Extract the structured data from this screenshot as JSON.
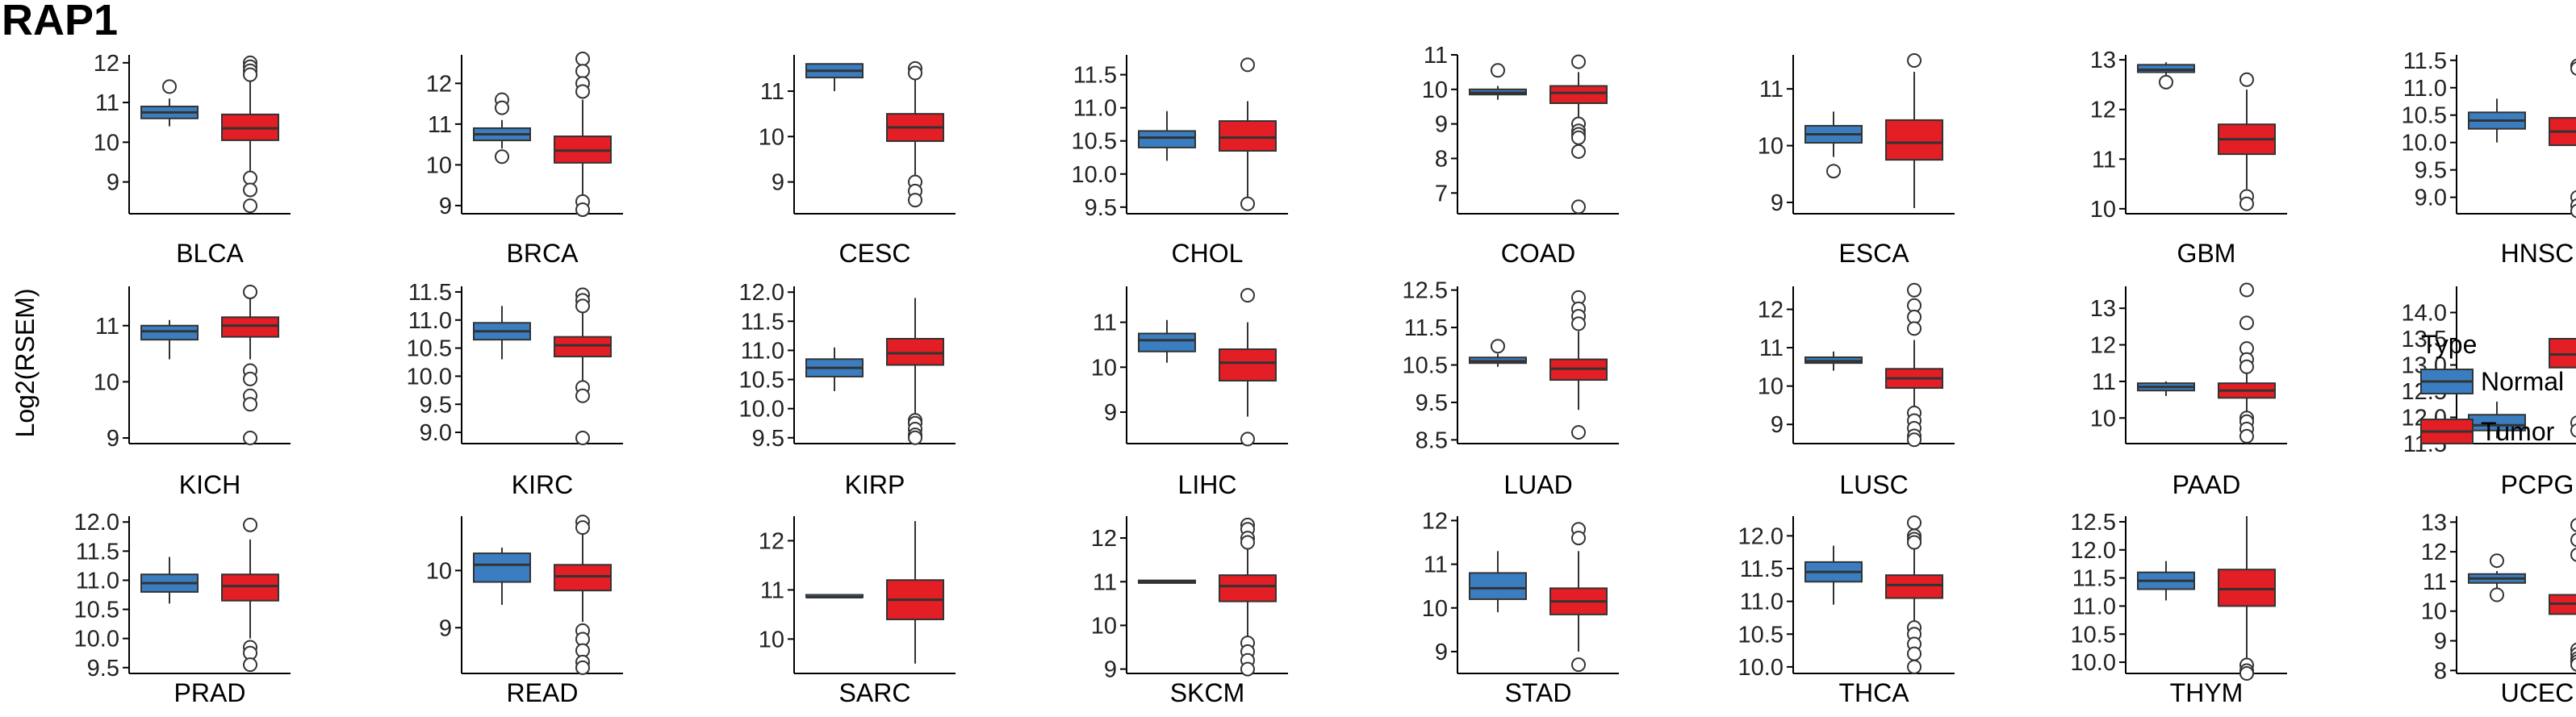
{
  "page": {
    "title": "RAP1"
  },
  "chart_data": {
    "type": "box",
    "title": "RAP1",
    "ylabel": "Log2(RSEM)",
    "legend": {
      "title": "Type",
      "entries": [
        {
          "name": "Normal",
          "color": "#3A7EC1"
        },
        {
          "name": "Tumor",
          "color": "#E31E24"
        }
      ],
      "placement": "right"
    },
    "colors": {
      "Normal": "#3A7EC1",
      "Tumor": "#E31E24"
    },
    "panels": [
      {
        "name": "BLCA",
        "yticks": [
          9,
          10,
          11,
          12
        ],
        "ylim": [
          8.2,
          12.2
        ],
        "normal": {
          "q1": 10.6,
          "median": 10.75,
          "q3": 10.9,
          "lo": 10.4,
          "hi": 11.1,
          "outliers": [
            11.4
          ]
        },
        "tumor": {
          "q1": 10.05,
          "median": 10.35,
          "q3": 10.7,
          "lo": 9.2,
          "hi": 11.6,
          "outliers": [
            12.0,
            11.9,
            11.8,
            11.7,
            9.1,
            8.8,
            8.4
          ]
        }
      },
      {
        "name": "BRCA",
        "yticks": [
          9,
          10,
          11,
          12
        ],
        "ylim": [
          8.8,
          12.7
        ],
        "normal": {
          "q1": 10.6,
          "median": 10.75,
          "q3": 10.9,
          "lo": 10.4,
          "hi": 11.1,
          "outliers": [
            11.6,
            11.4,
            10.2
          ]
        },
        "tumor": {
          "q1": 10.05,
          "median": 10.35,
          "q3": 10.7,
          "lo": 9.2,
          "hi": 11.6,
          "outliers": [
            12.6,
            12.3,
            12.0,
            11.8,
            9.1,
            8.9
          ]
        }
      },
      {
        "name": "CESC",
        "yticks": [
          9,
          10,
          11
        ],
        "ylim": [
          8.3,
          11.8
        ],
        "normal": {
          "q1": 11.3,
          "median": 11.45,
          "q3": 11.6,
          "lo": 11.0,
          "hi": 11.6,
          "outliers": []
        },
        "tumor": {
          "q1": 9.9,
          "median": 10.2,
          "q3": 10.5,
          "lo": 9.1,
          "hi": 11.3,
          "outliers": [
            11.5,
            11.4,
            9.0,
            8.8,
            8.6
          ]
        }
      },
      {
        "name": "CHOL",
        "yticks": [
          9.5,
          10.0,
          10.5,
          11.0,
          11.5
        ],
        "ylim": [
          9.4,
          11.8
        ],
        "normal": {
          "q1": 10.4,
          "median": 10.55,
          "q3": 10.65,
          "lo": 10.2,
          "hi": 10.95,
          "outliers": []
        },
        "tumor": {
          "q1": 10.35,
          "median": 10.55,
          "q3": 10.8,
          "lo": 9.6,
          "hi": 11.1,
          "outliers": [
            11.65,
            9.55
          ]
        }
      },
      {
        "name": "COAD",
        "yticks": [
          7,
          8,
          9,
          10,
          11
        ],
        "ylim": [
          6.4,
          11.0
        ],
        "normal": {
          "q1": 9.85,
          "median": 9.9,
          "q3": 10.0,
          "lo": 9.7,
          "hi": 10.1,
          "outliers": [
            10.55
          ]
        },
        "tumor": {
          "q1": 9.6,
          "median": 9.9,
          "q3": 10.1,
          "lo": 9.0,
          "hi": 10.5,
          "outliers": [
            10.8,
            9.0,
            8.8,
            8.7,
            8.6,
            8.2,
            6.6
          ]
        }
      },
      {
        "name": "ESCA",
        "yticks": [
          9,
          10,
          11
        ],
        "ylim": [
          8.8,
          11.6
        ],
        "normal": {
          "q1": 10.05,
          "median": 10.2,
          "q3": 10.35,
          "lo": 9.8,
          "hi": 10.6,
          "outliers": [
            9.55
          ]
        },
        "tumor": {
          "q1": 9.75,
          "median": 10.05,
          "q3": 10.45,
          "lo": 8.9,
          "hi": 11.3,
          "outliers": [
            11.5
          ]
        }
      },
      {
        "name": "GBM",
        "yticks": [
          10,
          11,
          12,
          13
        ],
        "ylim": [
          9.9,
          13.1
        ],
        "normal": {
          "q1": 12.75,
          "median": 12.8,
          "q3": 12.9,
          "lo": 12.6,
          "hi": 12.95,
          "outliers": [
            12.55
          ]
        },
        "tumor": {
          "q1": 11.1,
          "median": 11.4,
          "q3": 11.7,
          "lo": 10.4,
          "hi": 12.4,
          "outliers": [
            12.6,
            10.25,
            10.1
          ]
        }
      },
      {
        "name": "HNSC",
        "yticks": [
          9.0,
          9.5,
          10.0,
          10.5,
          11.0,
          11.5
        ],
        "ylim": [
          8.7,
          11.6
        ],
        "normal": {
          "q1": 10.25,
          "median": 10.4,
          "q3": 10.55,
          "lo": 10.0,
          "hi": 10.8,
          "outliers": []
        },
        "tumor": {
          "q1": 9.95,
          "median": 10.2,
          "q3": 10.45,
          "lo": 9.2,
          "hi": 11.2,
          "outliers": [
            11.4,
            11.35,
            9.0,
            8.85,
            8.75
          ]
        }
      },
      {
        "name": "KICH",
        "yticks": [
          9,
          10,
          11
        ],
        "ylim": [
          8.9,
          11.7
        ],
        "normal": {
          "q1": 10.75,
          "median": 10.9,
          "q3": 11.0,
          "lo": 10.4,
          "hi": 11.1,
          "outliers": []
        },
        "tumor": {
          "q1": 10.8,
          "median": 11.0,
          "q3": 11.15,
          "lo": 10.4,
          "hi": 11.5,
          "outliers": [
            11.6,
            10.2,
            10.05,
            9.75,
            9.6,
            9.0
          ]
        }
      },
      {
        "name": "KIRC",
        "yticks": [
          9.0,
          9.5,
          10.0,
          10.5,
          11.0,
          11.5
        ],
        "ylim": [
          8.8,
          11.6
        ],
        "normal": {
          "q1": 10.65,
          "median": 10.8,
          "q3": 10.95,
          "lo": 10.3,
          "hi": 11.25,
          "outliers": []
        },
        "tumor": {
          "q1": 10.35,
          "median": 10.55,
          "q3": 10.7,
          "lo": 9.9,
          "hi": 11.2,
          "outliers": [
            11.45,
            11.35,
            11.25,
            9.8,
            9.65,
            8.9
          ]
        }
      },
      {
        "name": "KIRP",
        "yticks": [
          9.5,
          10.0,
          10.5,
          11.0,
          11.5,
          12.0
        ],
        "ylim": [
          9.4,
          12.1
        ],
        "normal": {
          "q1": 10.55,
          "median": 10.7,
          "q3": 10.85,
          "lo": 10.3,
          "hi": 11.05,
          "outliers": []
        },
        "tumor": {
          "q1": 10.75,
          "median": 10.95,
          "q3": 11.2,
          "lo": 9.9,
          "hi": 11.9,
          "outliers": [
            9.8,
            9.75,
            9.65,
            9.55,
            9.5
          ]
        }
      },
      {
        "name": "LIHC",
        "yticks": [
          9,
          10,
          11
        ],
        "ylim": [
          8.3,
          11.8
        ],
        "normal": {
          "q1": 10.35,
          "median": 10.6,
          "q3": 10.75,
          "lo": 10.1,
          "hi": 11.05,
          "outliers": []
        },
        "tumor": {
          "q1": 9.7,
          "median": 10.1,
          "q3": 10.4,
          "lo": 8.9,
          "hi": 11.0,
          "outliers": [
            11.6,
            8.4
          ]
        }
      },
      {
        "name": "LUAD",
        "yticks": [
          8.5,
          9.5,
          10.5,
          11.5,
          12.5
        ],
        "ylim": [
          8.4,
          12.6
        ],
        "normal": {
          "q1": 10.55,
          "median": 10.6,
          "q3": 10.7,
          "lo": 10.45,
          "hi": 10.8,
          "outliers": [
            11.0
          ]
        },
        "tumor": {
          "q1": 10.1,
          "median": 10.4,
          "q3": 10.65,
          "lo": 9.3,
          "hi": 11.4,
          "outliers": [
            12.3,
            12.0,
            11.8,
            11.6,
            8.7
          ]
        }
      },
      {
        "name": "LUSC",
        "yticks": [
          9,
          10,
          11,
          12
        ],
        "ylim": [
          8.5,
          12.6
        ],
        "normal": {
          "q1": 10.6,
          "median": 10.65,
          "q3": 10.75,
          "lo": 10.4,
          "hi": 10.9,
          "outliers": []
        },
        "tumor": {
          "q1": 9.95,
          "median": 10.2,
          "q3": 10.45,
          "lo": 9.4,
          "hi": 11.2,
          "outliers": [
            12.5,
            12.1,
            11.8,
            11.5,
            9.3,
            9.1,
            8.9,
            8.7,
            8.6
          ]
        }
      },
      {
        "name": "PAAD",
        "yticks": [
          10,
          11,
          12,
          13
        ],
        "ylim": [
          9.3,
          13.6
        ],
        "normal": {
          "q1": 10.75,
          "median": 10.85,
          "q3": 10.95,
          "lo": 10.6,
          "hi": 11.0,
          "outliers": []
        },
        "tumor": {
          "q1": 10.55,
          "median": 10.75,
          "q3": 10.95,
          "lo": 10.1,
          "hi": 11.4,
          "outliers": [
            13.5,
            12.6,
            11.9,
            11.6,
            11.4,
            10.0,
            9.9,
            9.7,
            9.5
          ]
        }
      },
      {
        "name": "PCPG",
        "yticks": [
          11.5,
          12.0,
          12.5,
          13.0,
          13.5,
          14.0
        ],
        "ylim": [
          11.5,
          14.5
        ],
        "normal": {
          "q1": 11.75,
          "median": 11.85,
          "q3": 12.05,
          "lo": 11.6,
          "hi": 12.3,
          "outliers": []
        },
        "tumor": {
          "q1": 12.95,
          "median": 13.2,
          "q3": 13.5,
          "lo": 12.1,
          "hi": 14.3,
          "outliers": [
            11.9,
            11.75
          ]
        }
      },
      {
        "name": "PRAD",
        "yticks": [
          9.5,
          10.0,
          10.5,
          11.0,
          11.5,
          12.0
        ],
        "ylim": [
          9.4,
          12.1
        ],
        "normal": {
          "q1": 10.8,
          "median": 10.95,
          "q3": 11.1,
          "lo": 10.6,
          "hi": 11.4,
          "outliers": []
        },
        "tumor": {
          "q1": 10.65,
          "median": 10.9,
          "q3": 11.1,
          "lo": 10.0,
          "hi": 11.7,
          "outliers": [
            11.95,
            9.85,
            9.75,
            9.55
          ]
        }
      },
      {
        "name": "READ",
        "yticks": [
          9,
          10
        ],
        "ylim": [
          8.2,
          10.95
        ],
        "normal": {
          "q1": 9.8,
          "median": 10.1,
          "q3": 10.3,
          "lo": 9.4,
          "hi": 10.4,
          "outliers": []
        },
        "tumor": {
          "q1": 9.65,
          "median": 9.9,
          "q3": 10.1,
          "lo": 9.1,
          "hi": 10.7,
          "outliers": [
            10.85,
            10.75,
            8.95,
            8.8,
            8.6,
            8.4,
            8.3
          ]
        }
      },
      {
        "name": "SARC",
        "yticks": [
          10,
          11,
          12
        ],
        "ylim": [
          9.3,
          12.5
        ],
        "normal": {
          "q1": 10.85,
          "median": 10.85,
          "q3": 10.9,
          "lo": 10.85,
          "hi": 10.9,
          "outliers": []
        },
        "tumor": {
          "q1": 10.4,
          "median": 10.8,
          "q3": 11.2,
          "lo": 9.5,
          "hi": 12.4,
          "outliers": []
        }
      },
      {
        "name": "SKCM",
        "yticks": [
          9,
          10,
          11,
          12
        ],
        "ylim": [
          8.9,
          12.5
        ],
        "normal": {
          "q1": 10.97,
          "median": 11.0,
          "q3": 11.03,
          "lo": 10.97,
          "hi": 11.03,
          "outliers": []
        },
        "tumor": {
          "q1": 10.55,
          "median": 10.9,
          "q3": 11.15,
          "lo": 9.7,
          "hi": 11.9,
          "outliers": [
            12.3,
            12.2,
            12.0,
            11.9,
            9.6,
            9.4,
            9.2,
            9.0
          ]
        }
      },
      {
        "name": "STAD",
        "yticks": [
          9,
          10,
          11,
          12
        ],
        "ylim": [
          8.5,
          12.1
        ],
        "normal": {
          "q1": 10.2,
          "median": 10.45,
          "q3": 10.8,
          "lo": 9.9,
          "hi": 11.3,
          "outliers": []
        },
        "tumor": {
          "q1": 9.85,
          "median": 10.15,
          "q3": 10.45,
          "lo": 9.0,
          "hi": 11.3,
          "outliers": [
            11.8,
            11.6,
            8.7
          ]
        }
      },
      {
        "name": "THCA",
        "yticks": [
          10.0,
          10.5,
          11.0,
          11.5,
          12.0
        ],
        "ylim": [
          9.9,
          12.3
        ],
        "normal": {
          "q1": 11.3,
          "median": 11.45,
          "q3": 11.6,
          "lo": 10.95,
          "hi": 11.85,
          "outliers": []
        },
        "tumor": {
          "q1": 11.05,
          "median": 11.25,
          "q3": 11.4,
          "lo": 10.7,
          "hi": 11.8,
          "outliers": [
            12.2,
            12.0,
            11.95,
            11.9,
            10.6,
            10.5,
            10.35,
            10.2,
            10.0
          ]
        }
      },
      {
        "name": "THYM",
        "yticks": [
          10.0,
          10.5,
          11.0,
          11.5,
          12.0,
          12.5
        ],
        "ylim": [
          9.8,
          12.6
        ],
        "normal": {
          "q1": 11.3,
          "median": 11.45,
          "q3": 11.6,
          "lo": 11.1,
          "hi": 11.8,
          "outliers": []
        },
        "tumor": {
          "q1": 11.0,
          "median": 11.3,
          "q3": 11.65,
          "lo": 10.0,
          "hi": 12.6,
          "outliers": [
            9.95,
            9.85,
            9.8
          ]
        }
      },
      {
        "name": "UCEC",
        "yticks": [
          8,
          9,
          10,
          11,
          12,
          13
        ],
        "ylim": [
          7.9,
          13.2
        ],
        "normal": {
          "q1": 10.95,
          "median": 11.1,
          "q3": 11.25,
          "lo": 10.7,
          "hi": 11.35,
          "outliers": [
            11.7,
            10.55
          ]
        },
        "tumor": {
          "q1": 9.9,
          "median": 10.25,
          "q3": 10.55,
          "lo": 9.0,
          "hi": 11.5,
          "outliers": [
            12.9,
            12.4,
            11.9,
            8.7,
            8.55,
            8.4,
            8.3,
            8.2
          ]
        }
      }
    ]
  }
}
